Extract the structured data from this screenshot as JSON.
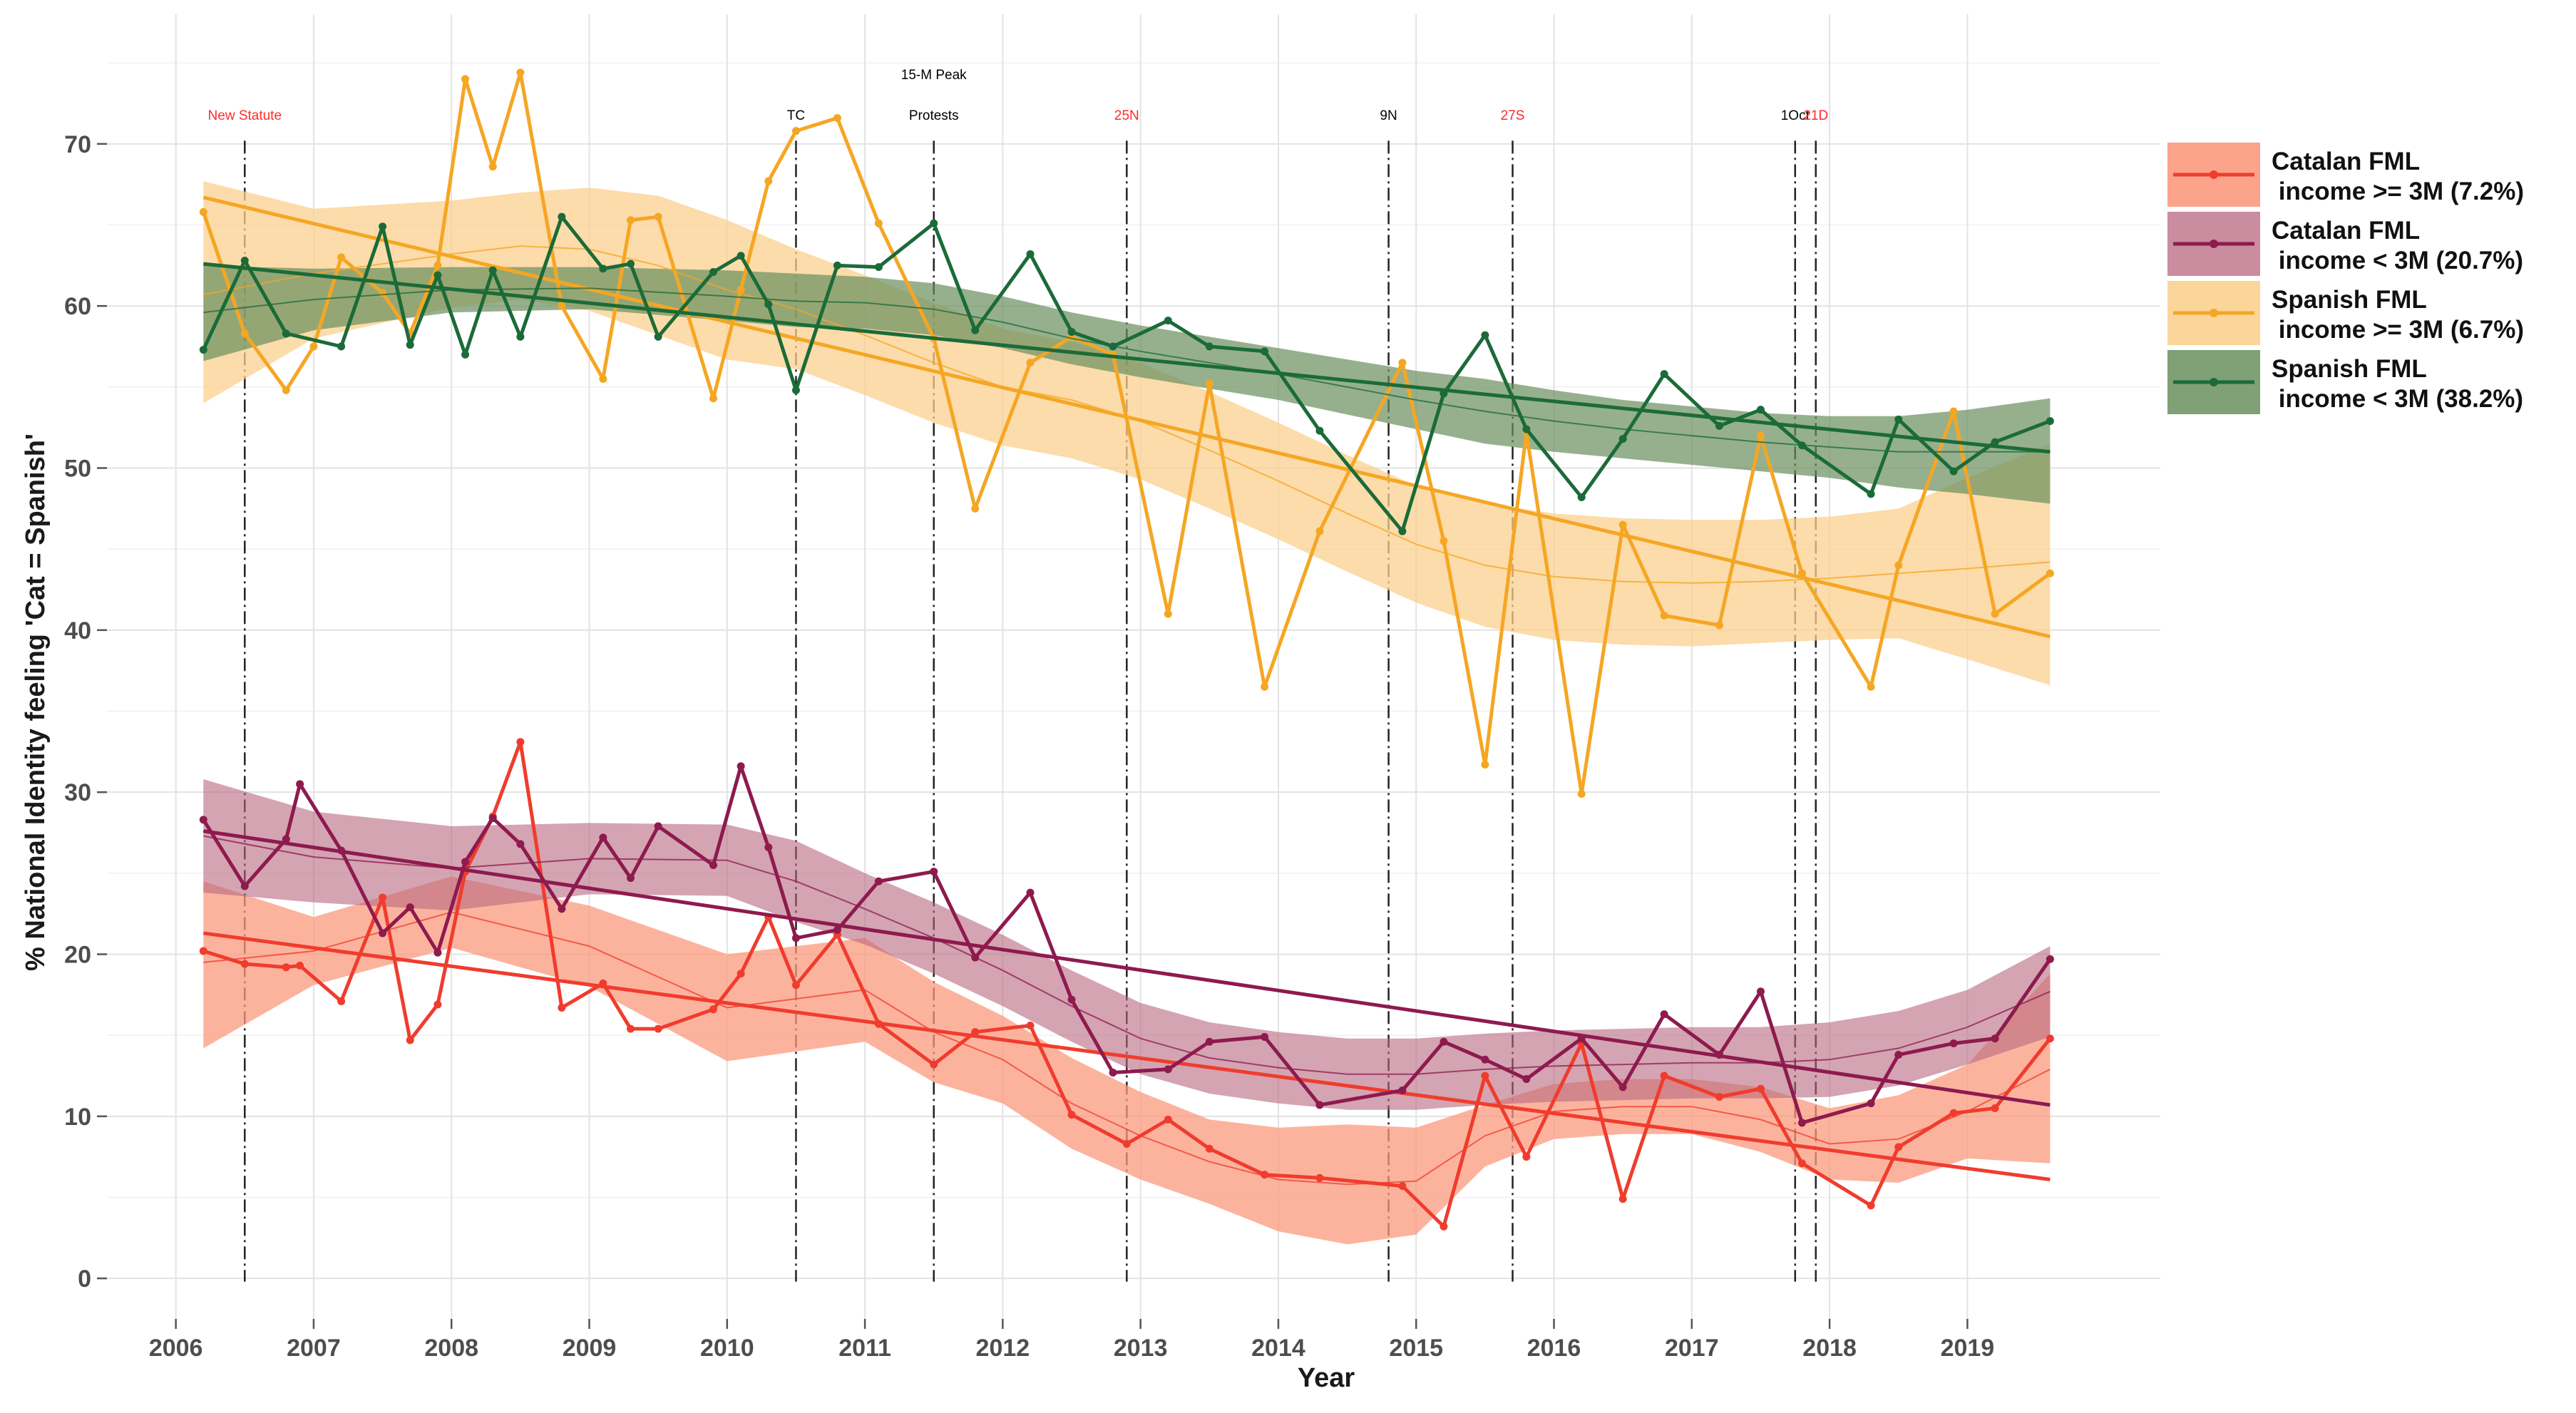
{
  "chart_data": {
    "type": "line",
    "xlabel": "Year",
    "ylabel": "% National Identity feeling 'Cat = Spanish'",
    "xlim": [
      2005.5,
      2020.4
    ],
    "ylim": [
      -2.5,
      78
    ],
    "x_ticks": [
      "2006",
      "2007",
      "2008",
      "2009",
      "2010",
      "2011",
      "2012",
      "2013",
      "2014",
      "2015",
      "2016",
      "2017",
      "2018",
      "2019"
    ],
    "y_ticks": [
      "0",
      "10",
      "20",
      "30",
      "40",
      "50",
      "60",
      "70"
    ],
    "events": [
      {
        "x": 2006.5,
        "label": "New Statute",
        "color": "#ff2a2a",
        "dash": "dashdot",
        "label_y": 71.5
      },
      {
        "x": 2010.5,
        "label": "TC",
        "color": "#000000",
        "dash": "dashdot",
        "label_y": 71.5
      },
      {
        "x": 2011.5,
        "label": "15-M Peak",
        "color": "#000000",
        "dash": "dashdot",
        "label_y": 74
      },
      {
        "x": 2011.5,
        "label": "Protests",
        "color": "#000000",
        "dash": "none",
        "label_y": 71.5
      },
      {
        "x": 2012.9,
        "label": "25N",
        "color": "#ff2a2a",
        "dash": "dashdot",
        "label_y": 71.5
      },
      {
        "x": 2014.8,
        "label": "9N",
        "color": "#000000",
        "dash": "dashdot",
        "label_y": 71.5
      },
      {
        "x": 2015.7,
        "label": "27S",
        "color": "#ff2a2a",
        "dash": "dashdot",
        "label_y": 71.5
      },
      {
        "x": 2017.75,
        "label": "1Oct",
        "color": "#000000",
        "dash": "dashdot",
        "label_y": 71.5
      },
      {
        "x": 2017.9,
        "label": "21D",
        "color": "#ff2a2a",
        "dash": "dashdot",
        "label_y": 71.5
      }
    ],
    "series": [
      {
        "name": "Catalan FML income >= 3M (7.2%)",
        "legend_line1": "Catalan FML",
        "legend_line2": " income >= 3M (7.2%)",
        "color": "#f03c2d",
        "band_color": "#fb9a7e",
        "band_opacity": 0.75,
        "x": [
          2006.2,
          2006.5,
          2006.8,
          2006.9,
          2007.2,
          2007.5,
          2007.7,
          2007.9,
          2008.1,
          2008.3,
          2008.5,
          2008.8,
          2009.1,
          2009.3,
          2009.5,
          2009.9,
          2010.1,
          2010.3,
          2010.5,
          2010.8,
          2011.1,
          2011.5,
          2011.8,
          2012.2,
          2012.5,
          2012.9,
          2013.2,
          2013.5,
          2013.9,
          2014.3,
          2014.9,
          2015.2,
          2015.5,
          2015.8,
          2016.2,
          2016.5,
          2016.8,
          2017.2,
          2017.5,
          2017.8,
          2018.3,
          2018.5,
          2018.9,
          2019.2,
          2019.6
        ],
        "y": [
          20.2,
          19.4,
          19.2,
          19.3,
          17.1,
          23.5,
          14.7,
          16.9,
          25.1,
          28.5,
          33.1,
          16.7,
          18.2,
          15.4,
          15.4,
          16.6,
          18.8,
          22.3,
          18.1,
          21.2,
          15.7,
          13.2,
          15.2,
          15.6,
          10.1,
          8.3,
          9.8,
          8.0,
          6.4,
          6.2,
          5.7,
          3.2,
          12.5,
          7.5,
          14.5,
          4.9,
          12.5,
          11.2,
          11.7,
          7.1,
          4.5,
          8.1,
          10.2,
          10.5,
          14.8
        ],
        "trend_x": [
          2006.2,
          2019.6
        ],
        "trend_y": [
          21.3,
          6.1
        ],
        "smooth_x": [
          2006.2,
          2007,
          2008,
          2009,
          2010,
          2011,
          2011.5,
          2012,
          2012.5,
          2013,
          2013.5,
          2014,
          2014.5,
          2015,
          2015.5,
          2016,
          2016.5,
          2017,
          2017.5,
          2018,
          2018.5,
          2019,
          2019.6
        ],
        "smooth_y": [
          19.5,
          20.2,
          22.6,
          20.5,
          16.7,
          17.8,
          15.2,
          13.5,
          10.8,
          8.8,
          7.2,
          6.1,
          5.8,
          6.0,
          8.8,
          10.3,
          10.6,
          10.6,
          9.8,
          8.3,
          8.6,
          10.3,
          12.9
        ],
        "band_upper": [
          24.5,
          22.3,
          24.8,
          23.0,
          20.0,
          21.0,
          18.3,
          16.2,
          13.6,
          11.5,
          9.8,
          9.3,
          9.5,
          9.3,
          10.7,
          12.0,
          12.3,
          12.3,
          11.8,
          10.5,
          11.3,
          13.2,
          18.8
        ],
        "band_lower": [
          14.2,
          18.1,
          20.4,
          18.0,
          13.4,
          14.6,
          12.1,
          10.8,
          8.0,
          6.1,
          4.6,
          2.9,
          2.1,
          2.7,
          6.9,
          8.6,
          8.9,
          8.9,
          7.8,
          6.1,
          5.9,
          7.4,
          7.1
        ]
      },
      {
        "name": "Catalan FML income < 3M (20.7%)",
        "legend_line1": "Catalan FML",
        "legend_line2": " income < 3M (20.7%)",
        "color": "#8e1a4e",
        "band_color": "#b7677f",
        "band_opacity": 0.6,
        "x": [
          2006.2,
          2006.5,
          2006.8,
          2006.9,
          2007.2,
          2007.5,
          2007.7,
          2007.9,
          2008.1,
          2008.3,
          2008.5,
          2008.8,
          2009.1,
          2009.3,
          2009.5,
          2009.9,
          2010.1,
          2010.3,
          2010.5,
          2010.8,
          2011.1,
          2011.5,
          2011.8,
          2012.2,
          2012.5,
          2012.8,
          2013.2,
          2013.5,
          2013.9,
          2014.3,
          2014.9,
          2015.2,
          2015.5,
          2015.8,
          2016.2,
          2016.5,
          2016.8,
          2017.2,
          2017.5,
          2017.8,
          2018.3,
          2018.5,
          2018.9,
          2019.2,
          2019.6
        ],
        "y": [
          28.3,
          24.2,
          27.1,
          30.5,
          26.4,
          21.3,
          22.9,
          20.1,
          25.7,
          28.4,
          26.8,
          22.8,
          27.2,
          24.7,
          27.9,
          25.5,
          31.6,
          26.6,
          21.0,
          21.5,
          24.5,
          25.1,
          19.8,
          23.8,
          17.2,
          12.7,
          12.9,
          14.6,
          14.9,
          10.7,
          11.6,
          14.6,
          13.5,
          12.3,
          14.8,
          11.8,
          16.3,
          13.8,
          17.7,
          9.6,
          10.8,
          13.8,
          14.5,
          14.8,
          19.7
        ],
        "trend_x": [
          2006.2,
          2019.6
        ],
        "trend_y": [
          27.6,
          10.7
        ],
        "smooth_x": [
          2006.2,
          2007,
          2008,
          2009,
          2010,
          2010.5,
          2011,
          2011.5,
          2012,
          2012.5,
          2013,
          2013.5,
          2014,
          2014.5,
          2015,
          2015.5,
          2016,
          2016.5,
          2017,
          2017.5,
          2018,
          2018.5,
          2019,
          2019.6
        ],
        "smooth_y": [
          27.3,
          26.0,
          25.3,
          25.9,
          25.8,
          24.5,
          22.8,
          21.0,
          19.0,
          16.8,
          14.8,
          13.6,
          13.0,
          12.6,
          12.6,
          12.9,
          13.1,
          13.2,
          13.3,
          13.3,
          13.5,
          14.2,
          15.5,
          17.7
        ],
        "band_upper": [
          30.8,
          28.8,
          27.9,
          28.1,
          28.0,
          27.0,
          25.0,
          23.2,
          21.2,
          19.0,
          17.0,
          15.8,
          15.2,
          14.8,
          14.8,
          15.1,
          15.3,
          15.4,
          15.5,
          15.5,
          15.8,
          16.5,
          17.8,
          20.5
        ],
        "band_lower": [
          23.8,
          23.2,
          22.7,
          23.7,
          23.6,
          22.0,
          20.6,
          18.8,
          16.8,
          14.6,
          12.6,
          11.4,
          10.8,
          10.4,
          10.4,
          10.7,
          10.9,
          11.0,
          11.1,
          11.1,
          11.2,
          11.9,
          13.2,
          14.9
        ]
      },
      {
        "name": "Spanish FML income >= 3M (6.7%)",
        "legend_line1": "Spanish FML",
        "legend_line2": " income >= 3M (6.7%)",
        "color": "#f5a623",
        "band_color": "#fbd08e",
        "band_opacity": 0.75,
        "x": [
          2006.2,
          2006.5,
          2006.8,
          2007.0,
          2007.2,
          2007.5,
          2007.7,
          2007.9,
          2008.1,
          2008.3,
          2008.5,
          2008.8,
          2009.1,
          2009.3,
          2009.5,
          2009.9,
          2010.1,
          2010.3,
          2010.5,
          2010.8,
          2011.1,
          2011.5,
          2011.8,
          2012.2,
          2012.5,
          2012.8,
          2013.2,
          2013.5,
          2013.9,
          2014.3,
          2014.9,
          2015.2,
          2015.5,
          2015.8,
          2016.2,
          2016.5,
          2016.8,
          2017.2,
          2017.5,
          2017.8,
          2018.3,
          2018.5,
          2018.9,
          2019.2,
          2019.6
        ],
        "y": [
          65.8,
          58.3,
          54.8,
          57.5,
          63.0,
          60.8,
          58.3,
          62.5,
          74.0,
          68.6,
          74.4,
          60.0,
          55.5,
          65.3,
          65.5,
          54.3,
          61.0,
          67.7,
          70.8,
          71.6,
          65.1,
          58.0,
          47.5,
          56.5,
          58.1,
          57.0,
          41.0,
          55.2,
          36.5,
          46.1,
          56.5,
          45.5,
          31.7,
          52.2,
          29.9,
          46.5,
          40.9,
          40.3,
          52.0,
          43.5,
          36.5,
          44.0,
          53.5,
          41.0,
          43.5
        ],
        "trend_x": [
          2006.2,
          2019.6
        ],
        "trend_y": [
          66.7,
          39.6
        ],
        "smooth_x": [
          2006.2,
          2007,
          2008,
          2008.5,
          2009,
          2009.5,
          2010,
          2010.5,
          2011,
          2011.5,
          2012,
          2012.5,
          2013,
          2013.5,
          2014,
          2014.5,
          2015,
          2015.5,
          2016,
          2016.5,
          2017,
          2017.5,
          2018,
          2018.5,
          2019,
          2019.6
        ],
        "smooth_y": [
          60.7,
          62.0,
          63.2,
          63.7,
          63.5,
          62.5,
          61.0,
          59.8,
          58.2,
          56.5,
          55.0,
          54.2,
          52.9,
          51.1,
          49.2,
          47.2,
          45.3,
          44.0,
          43.3,
          43.0,
          42.9,
          43.0,
          43.2,
          43.5,
          43.8,
          44.2
        ],
        "band_upper": [
          67.7,
          66.0,
          66.5,
          67.0,
          67.3,
          66.8,
          65.3,
          63.5,
          61.9,
          60.2,
          58.6,
          57.8,
          56.5,
          54.7,
          52.8,
          50.8,
          48.9,
          47.8,
          47.2,
          46.9,
          46.8,
          46.8,
          47.0,
          47.5,
          49.4,
          51.5
        ],
        "band_lower": [
          54.0,
          58.0,
          59.9,
          60.4,
          59.7,
          58.2,
          56.7,
          56.1,
          54.5,
          52.8,
          51.4,
          50.6,
          49.3,
          47.5,
          45.6,
          43.6,
          41.7,
          40.2,
          39.4,
          39.1,
          39.0,
          39.2,
          39.4,
          39.5,
          38.2,
          36.6
        ]
      },
      {
        "name": "Spanish FML income < 3M (38.2%)",
        "legend_line1": "Spanish FML",
        "legend_line2": " income < 3M (38.2%)",
        "color": "#1b6b38",
        "band_color": "#6a8f5e",
        "band_opacity": 0.7,
        "x": [
          2006.2,
          2006.5,
          2006.8,
          2007.2,
          2007.5,
          2007.7,
          2007.9,
          2008.1,
          2008.3,
          2008.5,
          2008.8,
          2009.1,
          2009.3,
          2009.5,
          2009.9,
          2010.1,
          2010.3,
          2010.5,
          2010.8,
          2011.1,
          2011.5,
          2011.8,
          2012.2,
          2012.5,
          2012.8,
          2013.2,
          2013.5,
          2013.9,
          2014.3,
          2014.9,
          2015.2,
          2015.5,
          2015.8,
          2016.2,
          2016.5,
          2016.8,
          2017.2,
          2017.5,
          2017.8,
          2018.3,
          2018.5,
          2018.9,
          2019.2,
          2019.6
        ],
        "y": [
          57.3,
          62.8,
          58.3,
          57.5,
          64.9,
          57.6,
          61.9,
          57.0,
          62.2,
          58.1,
          65.5,
          62.3,
          62.6,
          58.1,
          62.1,
          63.1,
          60.1,
          54.8,
          62.5,
          62.4,
          65.1,
          58.5,
          63.2,
          58.4,
          57.5,
          59.1,
          57.5,
          57.2,
          52.3,
          46.1,
          54.6,
          58.2,
          52.4,
          48.2,
          51.8,
          55.8,
          52.6,
          53.6,
          51.4,
          48.4,
          53.0,
          49.8,
          51.6,
          52.9
        ],
        "trend_x": [
          2006.2,
          2019.6
        ],
        "trend_y": [
          62.6,
          51.0
        ],
        "smooth_x": [
          2006.2,
          2007,
          2008,
          2009,
          2010,
          2010.5,
          2011,
          2011.5,
          2012,
          2012.5,
          2013,
          2013.5,
          2014,
          2014.5,
          2015,
          2015.5,
          2016,
          2016.5,
          2017,
          2017.5,
          2018,
          2018.5,
          2019,
          2019.6
        ],
        "smooth_y": [
          59.6,
          60.4,
          61.0,
          61.1,
          60.6,
          60.3,
          60.2,
          59.8,
          59.0,
          58.0,
          57.2,
          56.5,
          55.8,
          55.0,
          54.2,
          53.5,
          52.9,
          52.4,
          52.0,
          51.6,
          51.3,
          51.0,
          51.0,
          51.0
        ],
        "band_upper": [
          62.5,
          62.3,
          62.4,
          62.4,
          62.2,
          62.0,
          61.8,
          61.4,
          60.6,
          59.6,
          58.8,
          58.1,
          57.4,
          56.7,
          56.0,
          55.5,
          54.8,
          54.2,
          53.8,
          53.4,
          53.2,
          53.2,
          53.6,
          54.3
        ],
        "band_lower": [
          56.6,
          58.5,
          59.6,
          59.8,
          59.1,
          58.7,
          58.6,
          58.2,
          57.4,
          56.4,
          55.6,
          54.9,
          54.2,
          53.3,
          52.4,
          51.5,
          51.0,
          50.6,
          50.2,
          49.8,
          49.4,
          48.8,
          48.4,
          47.8
        ]
      }
    ]
  }
}
